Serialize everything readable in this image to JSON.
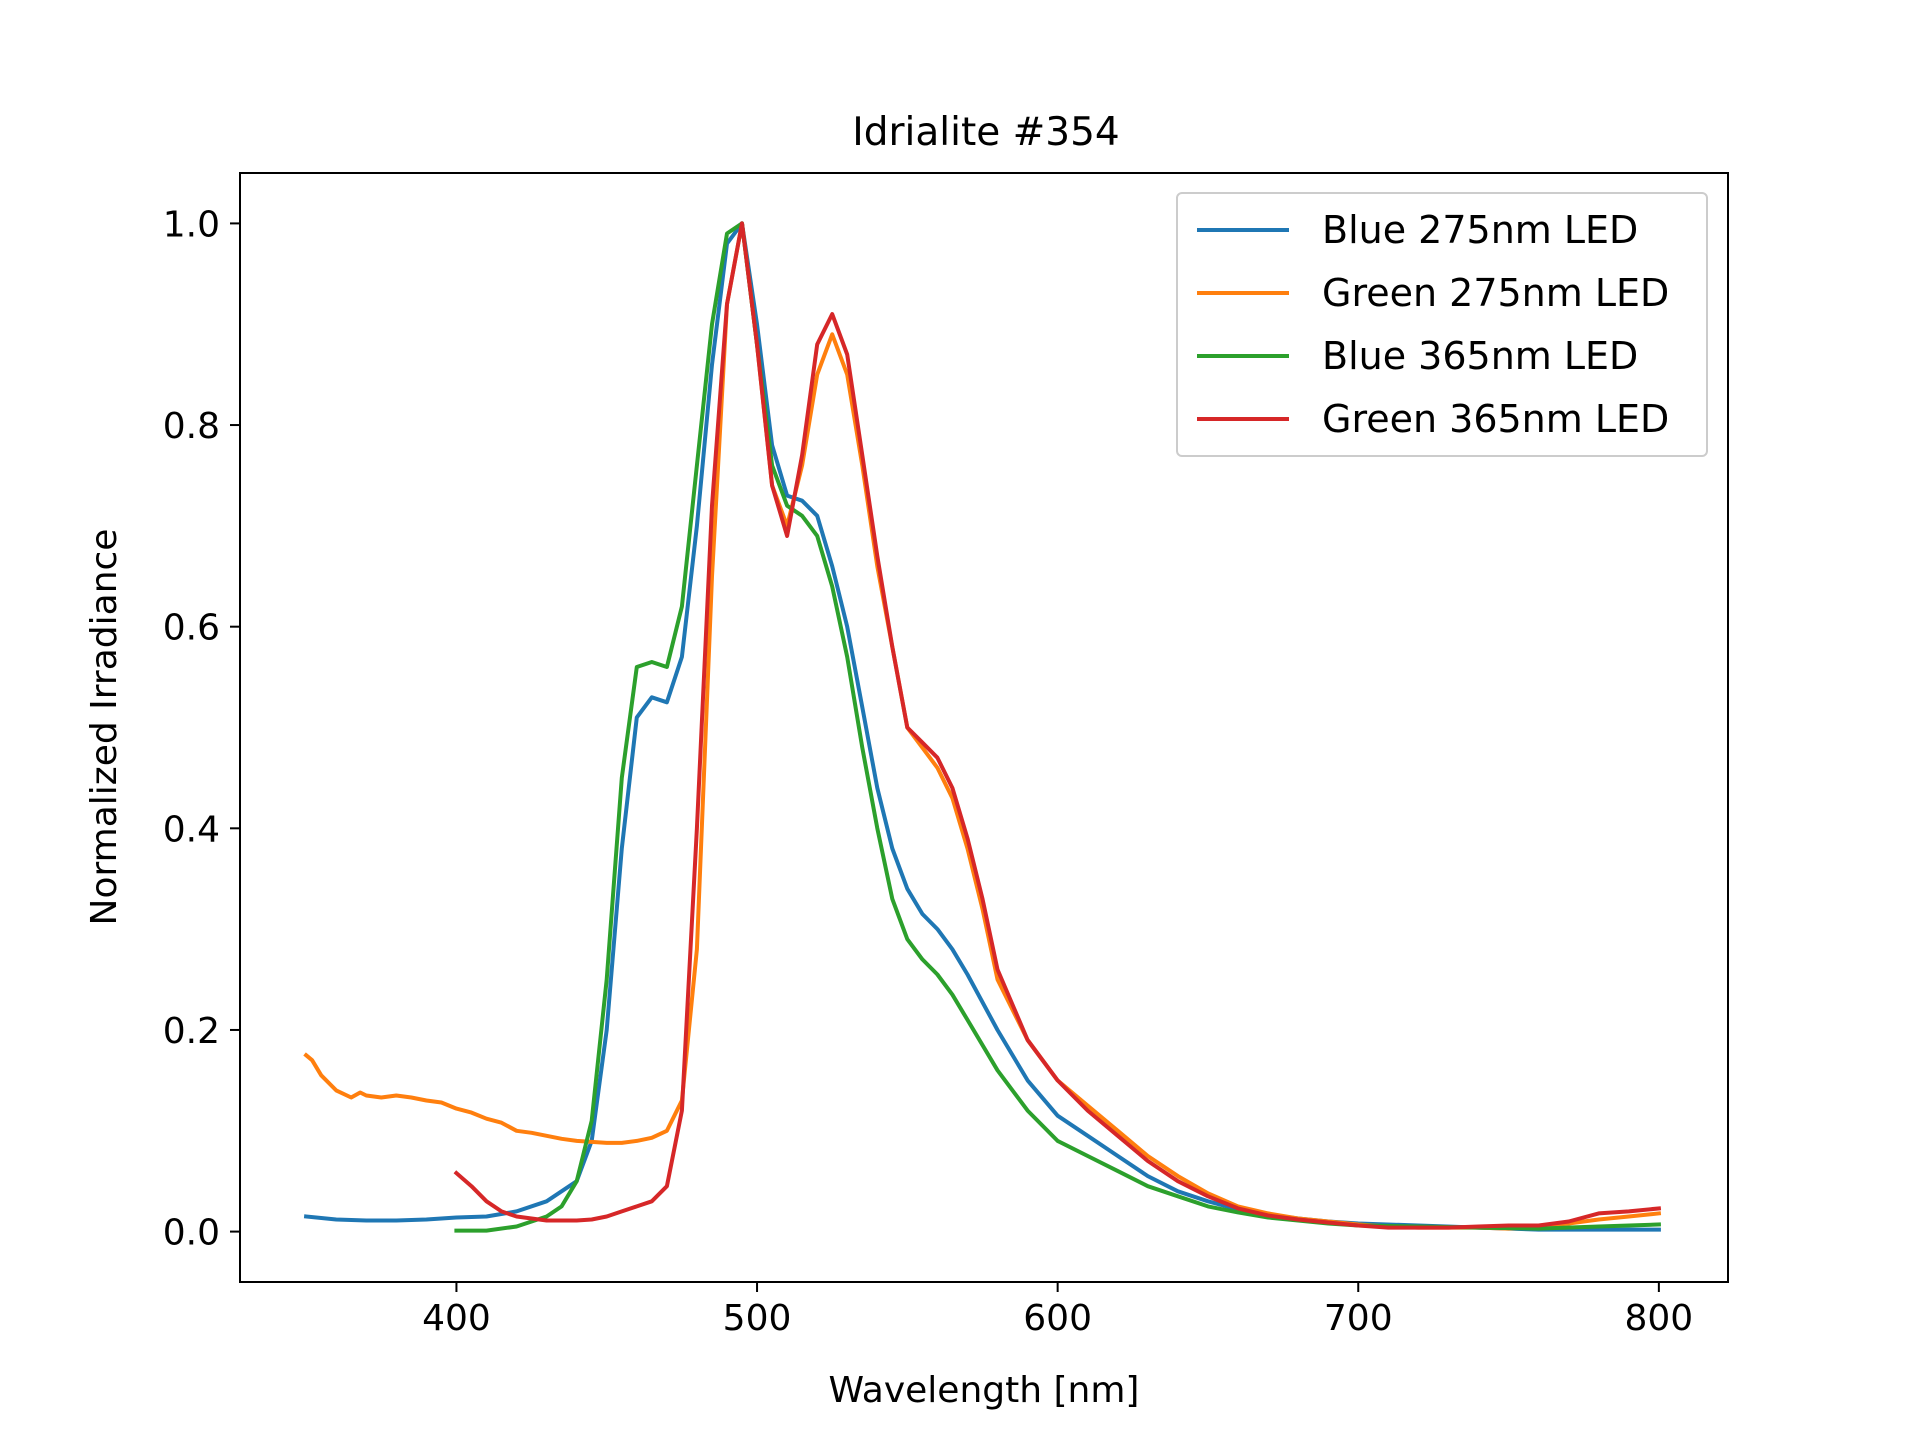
{
  "chart_data": {
    "type": "line",
    "title": "Idrialite #354",
    "xlabel": "Wavelength [nm]",
    "ylabel": "Normalized Irradiance",
    "xlim": [
      328,
      823
    ],
    "ylim": [
      -0.05,
      1.05
    ],
    "xticks": [
      400,
      500,
      600,
      700,
      800
    ],
    "xtick_labels": [
      "400",
      "500",
      "600",
      "700",
      "800"
    ],
    "yticks": [
      0.0,
      0.2,
      0.4,
      0.6,
      0.8,
      1.0
    ],
    "ytick_labels": [
      "0.0",
      "0.2",
      "0.4",
      "0.6",
      "0.8",
      "1.0"
    ],
    "grid": false,
    "legend_position": "top-right",
    "series": [
      {
        "name": "Blue 275nm LED",
        "color": "#1f77b4",
        "x": [
          350,
          360,
          370,
          380,
          390,
          400,
          410,
          420,
          430,
          440,
          445,
          450,
          455,
          460,
          465,
          470,
          475,
          480,
          485,
          490,
          495,
          500,
          505,
          510,
          515,
          520,
          525,
          530,
          535,
          540,
          545,
          550,
          555,
          560,
          565,
          570,
          580,
          590,
          600,
          610,
          620,
          630,
          640,
          650,
          660,
          670,
          680,
          690,
          700,
          720,
          740,
          760,
          780,
          800
        ],
        "y": [
          0.015,
          0.012,
          0.011,
          0.011,
          0.012,
          0.014,
          0.015,
          0.02,
          0.03,
          0.05,
          0.09,
          0.2,
          0.38,
          0.51,
          0.53,
          0.525,
          0.57,
          0.7,
          0.86,
          0.98,
          1.0,
          0.9,
          0.78,
          0.73,
          0.725,
          0.71,
          0.66,
          0.6,
          0.52,
          0.44,
          0.38,
          0.34,
          0.315,
          0.3,
          0.28,
          0.255,
          0.2,
          0.15,
          0.115,
          0.095,
          0.075,
          0.055,
          0.04,
          0.03,
          0.022,
          0.017,
          0.013,
          0.01,
          0.008,
          0.006,
          0.004,
          0.002,
          0.002,
          0.002
        ]
      },
      {
        "name": "Green 275nm LED",
        "color": "#ff7f0e",
        "x": [
          350,
          352,
          355,
          360,
          365,
          368,
          370,
          375,
          380,
          385,
          390,
          395,
          400,
          405,
          410,
          415,
          420,
          425,
          430,
          435,
          440,
          445,
          450,
          455,
          460,
          465,
          470,
          475,
          480,
          485,
          490,
          495,
          500,
          505,
          510,
          515,
          520,
          525,
          530,
          535,
          540,
          545,
          550,
          555,
          560,
          565,
          570,
          575,
          580,
          590,
          600,
          610,
          620,
          630,
          640,
          650,
          660,
          670,
          680,
          690,
          700,
          710,
          720,
          730,
          740,
          750,
          760,
          770,
          780,
          790,
          800
        ],
        "y": [
          0.175,
          0.17,
          0.155,
          0.14,
          0.133,
          0.138,
          0.135,
          0.133,
          0.135,
          0.133,
          0.13,
          0.128,
          0.122,
          0.118,
          0.112,
          0.108,
          0.1,
          0.098,
          0.095,
          0.092,
          0.09,
          0.089,
          0.088,
          0.088,
          0.09,
          0.093,
          0.1,
          0.13,
          0.28,
          0.65,
          0.92,
          1.0,
          0.88,
          0.74,
          0.7,
          0.76,
          0.85,
          0.89,
          0.85,
          0.76,
          0.66,
          0.58,
          0.5,
          0.48,
          0.46,
          0.43,
          0.38,
          0.32,
          0.25,
          0.19,
          0.15,
          0.125,
          0.1,
          0.075,
          0.055,
          0.038,
          0.025,
          0.018,
          0.013,
          0.01,
          0.007,
          0.005,
          0.004,
          0.004,
          0.004,
          0.003,
          0.005,
          0.008,
          0.012,
          0.015,
          0.018
        ]
      },
      {
        "name": "Blue 365nm LED",
        "color": "#2ca02c",
        "x": [
          400,
          410,
          420,
          430,
          435,
          440,
          445,
          450,
          455,
          460,
          465,
          470,
          475,
          480,
          485,
          490,
          495,
          500,
          505,
          510,
          515,
          520,
          525,
          530,
          535,
          540,
          545,
          550,
          555,
          560,
          565,
          570,
          580,
          590,
          600,
          610,
          620,
          630,
          640,
          650,
          660,
          670,
          680,
          690,
          700,
          720,
          740,
          760,
          780,
          800
        ],
        "y": [
          0.001,
          0.001,
          0.005,
          0.015,
          0.025,
          0.05,
          0.11,
          0.25,
          0.45,
          0.56,
          0.565,
          0.56,
          0.62,
          0.76,
          0.9,
          0.99,
          1.0,
          0.88,
          0.76,
          0.72,
          0.71,
          0.69,
          0.64,
          0.57,
          0.48,
          0.4,
          0.33,
          0.29,
          0.27,
          0.255,
          0.235,
          0.21,
          0.16,
          0.12,
          0.09,
          0.075,
          0.06,
          0.045,
          0.035,
          0.025,
          0.019,
          0.014,
          0.011,
          0.008,
          0.006,
          0.005,
          0.004,
          0.003,
          0.005,
          0.007
        ]
      },
      {
        "name": "Green 365nm LED",
        "color": "#d62728",
        "x": [
          400,
          405,
          410,
          415,
          420,
          430,
          440,
          445,
          450,
          455,
          460,
          465,
          470,
          475,
          480,
          485,
          490,
          495,
          500,
          505,
          510,
          515,
          520,
          525,
          530,
          535,
          540,
          545,
          550,
          555,
          560,
          565,
          570,
          575,
          580,
          590,
          600,
          610,
          620,
          630,
          640,
          650,
          660,
          670,
          680,
          690,
          700,
          710,
          720,
          730,
          740,
          750,
          760,
          770,
          780,
          790,
          800
        ],
        "y": [
          0.058,
          0.045,
          0.03,
          0.02,
          0.015,
          0.011,
          0.011,
          0.012,
          0.015,
          0.02,
          0.025,
          0.03,
          0.045,
          0.12,
          0.4,
          0.72,
          0.92,
          1.0,
          0.88,
          0.74,
          0.69,
          0.77,
          0.88,
          0.91,
          0.87,
          0.77,
          0.67,
          0.58,
          0.5,
          0.485,
          0.47,
          0.44,
          0.39,
          0.33,
          0.26,
          0.19,
          0.15,
          0.12,
          0.095,
          0.07,
          0.05,
          0.035,
          0.023,
          0.016,
          0.012,
          0.009,
          0.006,
          0.004,
          0.004,
          0.004,
          0.005,
          0.006,
          0.006,
          0.01,
          0.018,
          0.02,
          0.023
        ]
      }
    ]
  }
}
